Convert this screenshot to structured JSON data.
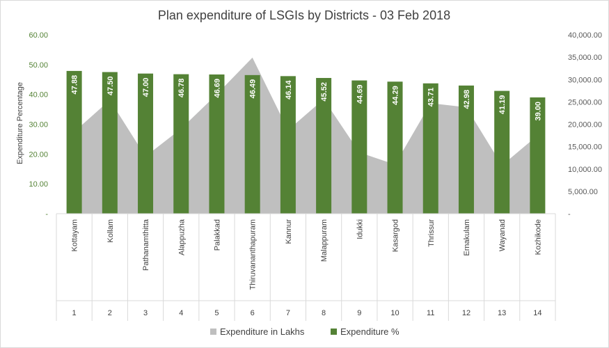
{
  "chart_data": {
    "type": "bar",
    "title": "Plan expenditure of LSGIs by Districts - 03 Feb 2018",
    "ylabel": "Expenditure Percentage",
    "y2label": "",
    "ylim": [
      0,
      60
    ],
    "y2lim": [
      0,
      40000
    ],
    "y_ticks": [
      "-",
      "10.00",
      "20.00",
      "30.00",
      "40.00",
      "50.00",
      "60.00"
    ],
    "y2_ticks": [
      "-",
      "5,000.00",
      "10,000.00",
      "15,000.00",
      "20,000.00",
      "25,000.00",
      "30,000.00",
      "35,000.00",
      "40,000.00"
    ],
    "categories": [
      "Kottayam",
      "Kollam",
      "Pathanamthitta",
      "Alappuzha",
      "Palakkad",
      "Thiruvananthapuram",
      "Kannur",
      "Malappuram",
      "Idukki",
      "Kasargod",
      "Thrissur",
      "Ernakulam",
      "Wayanad",
      "Kozhikode"
    ],
    "indices": [
      "1",
      "2",
      "3",
      "4",
      "5",
      "6",
      "7",
      "8",
      "9",
      "10",
      "11",
      "12",
      "13",
      "14"
    ],
    "series": [
      {
        "name": "Expenditure in Lakhs",
        "kind": "area",
        "axis": "right",
        "color": "#bfbfbf",
        "values": [
          18300,
          25400,
          12800,
          19000,
          26700,
          34900,
          18700,
          25600,
          13700,
          11000,
          24700,
          23800,
          10800,
          17500
        ]
      },
      {
        "name": "Expenditure %",
        "kind": "bar",
        "axis": "left",
        "color": "#548235",
        "values": [
          47.88,
          47.5,
          47.0,
          46.78,
          46.69,
          46.49,
          46.14,
          45.52,
          44.69,
          44.29,
          43.71,
          42.98,
          41.19,
          39.0
        ],
        "labels": [
          "47.88",
          "47.50",
          "47.00",
          "46.78",
          "46.69",
          "46.49",
          "46.14",
          "45.52",
          "44.69",
          "44.29",
          "43.71",
          "42.98",
          "41.19",
          "39.00"
        ]
      }
    ],
    "legend": {
      "position": "bottom",
      "items": [
        "Expenditure in Lakhs",
        "Expenditure %"
      ]
    }
  }
}
